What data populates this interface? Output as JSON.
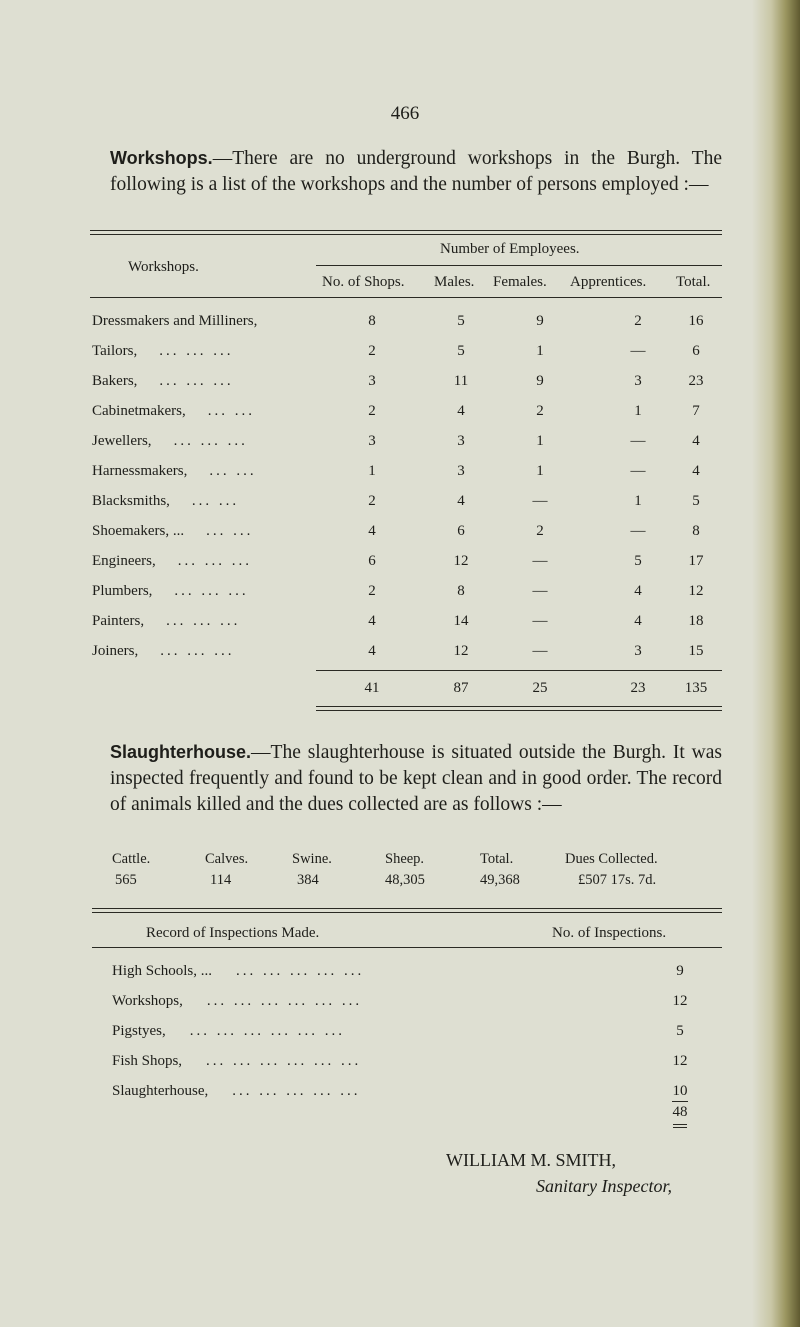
{
  "page_number": "466",
  "workshops_paragraph": {
    "heading": "Workshops.",
    "text": "—There are no underground workshops in the Burgh. The following is a list of the workshops and the number of persons employed :—"
  },
  "workshops_table": {
    "row_header": "Workshops.",
    "group_header": "Number of Employees.",
    "columns": [
      "No. of Shops.",
      "Males.",
      "Females.",
      "Apprentices.",
      "Total."
    ],
    "rows": [
      {
        "name": "Dressmakers and Milliners,",
        "dots": "",
        "values": [
          "8",
          "5",
          "9",
          "2",
          "16"
        ]
      },
      {
        "name": "Tailors,",
        "dots": "... ... ...",
        "values": [
          "2",
          "5",
          "1",
          "—",
          "6"
        ]
      },
      {
        "name": "Bakers,",
        "dots": "... ... ...",
        "values": [
          "3",
          "11",
          "9",
          "3",
          "23"
        ]
      },
      {
        "name": "Cabinetmakers,",
        "dots": "... ...",
        "values": [
          "2",
          "4",
          "2",
          "1",
          "7"
        ]
      },
      {
        "name": "Jewellers,",
        "dots": "... ... ...",
        "values": [
          "3",
          "3",
          "1",
          "—",
          "4"
        ]
      },
      {
        "name": "Harnessmakers,",
        "dots": "... ...",
        "values": [
          "1",
          "3",
          "1",
          "—",
          "4"
        ]
      },
      {
        "name": "Blacksmiths,",
        "dots": "... ...",
        "values": [
          "2",
          "4",
          "—",
          "1",
          "5"
        ]
      },
      {
        "name": "Shoemakers, ...",
        "dots": "... ...",
        "values": [
          "4",
          "6",
          "2",
          "—",
          "8"
        ]
      },
      {
        "name": "Engineers,",
        "dots": "... ... ...",
        "values": [
          "6",
          "12",
          "—",
          "5",
          "17"
        ]
      },
      {
        "name": "Plumbers,",
        "dots": "... ... ...",
        "values": [
          "2",
          "8",
          "—",
          "4",
          "12"
        ]
      },
      {
        "name": "Painters,",
        "dots": "... ... ...",
        "values": [
          "4",
          "14",
          "—",
          "4",
          "18"
        ]
      },
      {
        "name": "Joiners,",
        "dots": "... ... ...",
        "values": [
          "4",
          "12",
          "—",
          "3",
          "15"
        ]
      }
    ],
    "totals": [
      "41",
      "87",
      "25",
      "23",
      "135"
    ]
  },
  "slaughterhouse_paragraph": {
    "heading": "Slaughterhouse.",
    "text": "—The slaughterhouse is situated outside the Burgh. It was inspected frequently and found to be kept clean and in good order. The record of animals killed and the dues collected are as follows :—"
  },
  "slaughter_summary": {
    "headers": [
      "Cattle.",
      "Calves.",
      "Swine.",
      "Sheep.",
      "Total.",
      "Dues Collected."
    ],
    "values": [
      "565",
      "114",
      "384",
      "48,305",
      "49,368",
      "£507 17s. 7d."
    ]
  },
  "inspections_table": {
    "header_left": "Record of Inspections Made.",
    "header_right": "No. of Inspections.",
    "rows": [
      {
        "name": "High Schools, ...",
        "dots": "... ... ... ... ...",
        "value": "9"
      },
      {
        "name": "Workshops,",
        "dots": "... ... ... ... ... ...",
        "value": "12"
      },
      {
        "name": "Pigstyes,",
        "dots": "... ... ... ... ... ...",
        "value": "5"
      },
      {
        "name": "Fish Shops,",
        "dots": "... ... ... ... ... ...",
        "value": "12"
      },
      {
        "name": "Slaughterhouse,",
        "dots": "... ... ... ... ...",
        "value": "10"
      }
    ],
    "total": "48"
  },
  "signature": {
    "name": "WILLIAM M. SMITH,",
    "title": "Sanitary Inspector,"
  }
}
